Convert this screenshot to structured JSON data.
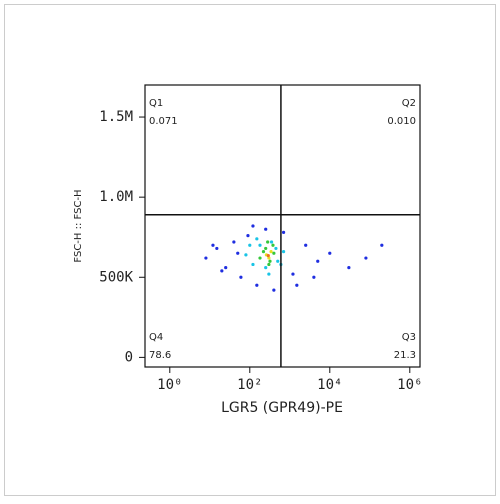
{
  "chart_data": {
    "type": "scatter",
    "x_label": "LGR5 (GPR49)-PE",
    "y_label": "FSC-H :: FSC-H",
    "x_log": true,
    "xlim": [
      0.24,
      1800000
    ],
    "ylim": [
      -60000,
      1700000
    ],
    "xticks": [
      {
        "value": 1,
        "label": "10⁰"
      },
      {
        "value": 100,
        "label": "10²"
      },
      {
        "value": 10000,
        "label": "10⁴"
      },
      {
        "value": 1000000,
        "label": "10⁶"
      }
    ],
    "yticks": [
      0,
      {
        "value": 500000,
        "label": "500K"
      },
      {
        "value": 1000000,
        "label": "1.0M"
      },
      {
        "value": 1500000,
        "label": "1.5M"
      }
    ],
    "gates": {
      "x": 600,
      "y": 890000
    },
    "quadrants": {
      "names": [
        "Q1",
        "Q2",
        "Q3",
        "Q4"
      ],
      "values": [
        0.071,
        0.01,
        21.3,
        78.6
      ],
      "value_labels": [
        "0.071",
        "0.010",
        "21.3",
        "78.6"
      ]
    },
    "series": [
      {
        "color": "#1f2ee0",
        "x": [
          8,
          15,
          25,
          40,
          60,
          90,
          150,
          250,
          400,
          700,
          1200,
          2500,
          5000,
          10000,
          30000,
          80000,
          200000,
          20,
          50,
          120,
          1500,
          4000,
          12
        ],
        "y": [
          620000,
          680000,
          560000,
          720000,
          500000,
          760000,
          450000,
          800000,
          420000,
          780000,
          520000,
          700000,
          600000,
          650000,
          560000,
          620000,
          700000,
          540000,
          650000,
          820000,
          450000,
          500000,
          700000
        ]
      },
      {
        "color": "#19c4e6",
        "x": [
          80,
          120,
          180,
          250,
          350,
          500,
          700,
          150,
          300,
          450,
          100,
          600
        ],
        "y": [
          640000,
          580000,
          700000,
          560000,
          720000,
          600000,
          660000,
          740000,
          520000,
          680000,
          700000,
          580000
        ]
      },
      {
        "color": "#34c83a",
        "x": [
          180,
          250,
          320,
          400,
          220,
          300,
          380,
          280
        ],
        "y": [
          620000,
          680000,
          600000,
          650000,
          660000,
          580000,
          700000,
          720000
        ]
      },
      {
        "color": "#e8e020",
        "x": [
          260,
          300,
          340
        ],
        "y": [
          640000,
          620000,
          660000
        ]
      },
      {
        "color": "#f07020",
        "x": [
          290
        ],
        "y": [
          635000
        ]
      }
    ]
  }
}
